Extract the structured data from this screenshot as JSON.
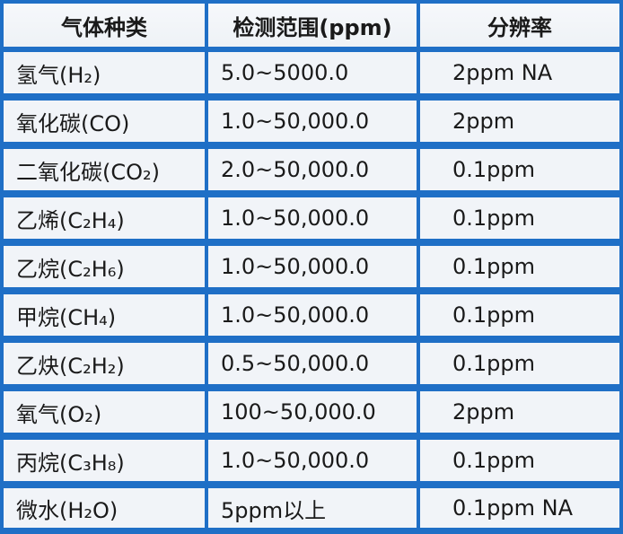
{
  "header": {
    "col1": "气体种类",
    "col2": "检测范围(ppm)",
    "col3": "分辨率"
  },
  "rows": [
    {
      "gas": "氢气(H₂)",
      "range": "5.0~5000.0",
      "resolution": "2ppm NA"
    },
    {
      "gas": "氧化碳(CO)",
      "range": "1.0~50,000.0",
      "resolution": "2ppm"
    },
    {
      "gas": "二氧化碳(CO₂)",
      "range": "2.0~50,000.0",
      "resolution": "0.1ppm"
    },
    {
      "gas": "乙烯(C₂H₄)",
      "range": "1.0~50,000.0",
      "resolution": "0.1ppm"
    },
    {
      "gas": "乙烷(C₂H₆)",
      "range": "1.0~50,000.0",
      "resolution": "0.1ppm"
    },
    {
      "gas": "甲烷(CH₄)",
      "range": "1.0~50,000.0",
      "resolution": "0.1ppm"
    },
    {
      "gas": "乙炔(C₂H₂)",
      "range": "0.5~50,000.0",
      "resolution": "0.1ppm"
    },
    {
      "gas": "氧气(O₂)",
      "range": "100~50,000.0",
      "resolution": "2ppm"
    },
    {
      "gas": "丙烷(C₃H₈)",
      "range": "1.0~50,000.0",
      "resolution": "0.1ppm"
    },
    {
      "gas": "微水(H₂O)",
      "range": "5ppm以上",
      "resolution": "0.1ppm NA"
    }
  ]
}
